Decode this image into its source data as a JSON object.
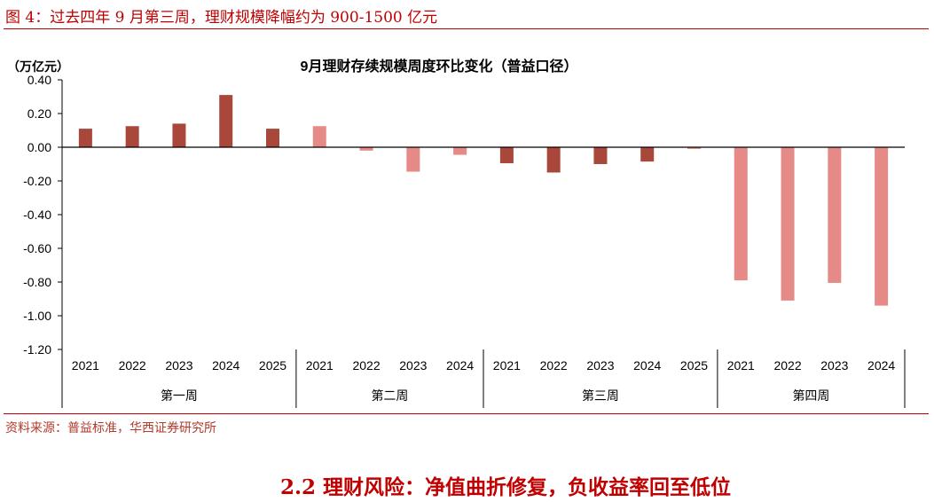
{
  "figure_title": "图 4：过去四年 9 月第三周，理财规模降幅约为 900-1500 亿元",
  "source_note": "资料来源：普益标准，华西证券研究所",
  "section_heading": "2.2 理财风险：净值曲折修复，负收益率回至低位",
  "colors": {
    "accent": "#c00000",
    "bar_dark": "#a8473a",
    "bar_light": "#e58a87",
    "axis": "#000000"
  },
  "chart_data": {
    "type": "bar",
    "title": "9月理财存续规模周度环比变化（普益口径）",
    "unit_label": "（万亿元）",
    "xlabel": "",
    "ylabel": "",
    "ylim": [
      -1.2,
      0.4
    ],
    "yticks": [
      "0.40",
      "0.20",
      "0.00",
      "-0.20",
      "-0.40",
      "-0.60",
      "-0.80",
      "-1.00",
      "-1.20"
    ],
    "ytick_values": [
      0.4,
      0.2,
      0.0,
      -0.2,
      -0.4,
      -0.6,
      -0.8,
      -1.0,
      -1.2
    ],
    "grid": false,
    "groups": [
      {
        "label": "第一周",
        "bars": [
          {
            "year": "2021",
            "value": 0.11,
            "color": "dark"
          },
          {
            "year": "2022",
            "value": 0.125,
            "color": "dark"
          },
          {
            "year": "2023",
            "value": 0.14,
            "color": "dark"
          },
          {
            "year": "2024",
            "value": 0.31,
            "color": "dark"
          },
          {
            "year": "2025",
            "value": 0.11,
            "color": "dark"
          }
        ]
      },
      {
        "label": "第二周",
        "bars": [
          {
            "year": "2021",
            "value": 0.125,
            "color": "light"
          },
          {
            "year": "2022",
            "value": -0.02,
            "color": "light"
          },
          {
            "year": "2023",
            "value": -0.145,
            "color": "light"
          },
          {
            "year": "2024",
            "value": -0.045,
            "color": "light"
          }
        ]
      },
      {
        "label": "第三周",
        "bars": [
          {
            "year": "2021",
            "value": -0.095,
            "color": "dark"
          },
          {
            "year": "2022",
            "value": -0.15,
            "color": "dark"
          },
          {
            "year": "2023",
            "value": -0.1,
            "color": "dark"
          },
          {
            "year": "2024",
            "value": -0.085,
            "color": "dark"
          },
          {
            "year": "2025",
            "value": -0.01,
            "color": "light"
          }
        ]
      },
      {
        "label": "第四周",
        "bars": [
          {
            "year": "2021",
            "value": -0.79,
            "color": "light"
          },
          {
            "year": "2022",
            "value": -0.91,
            "color": "light"
          },
          {
            "year": "2023",
            "value": -0.805,
            "color": "light"
          },
          {
            "year": "2024",
            "value": -0.94,
            "color": "light"
          }
        ]
      }
    ]
  }
}
